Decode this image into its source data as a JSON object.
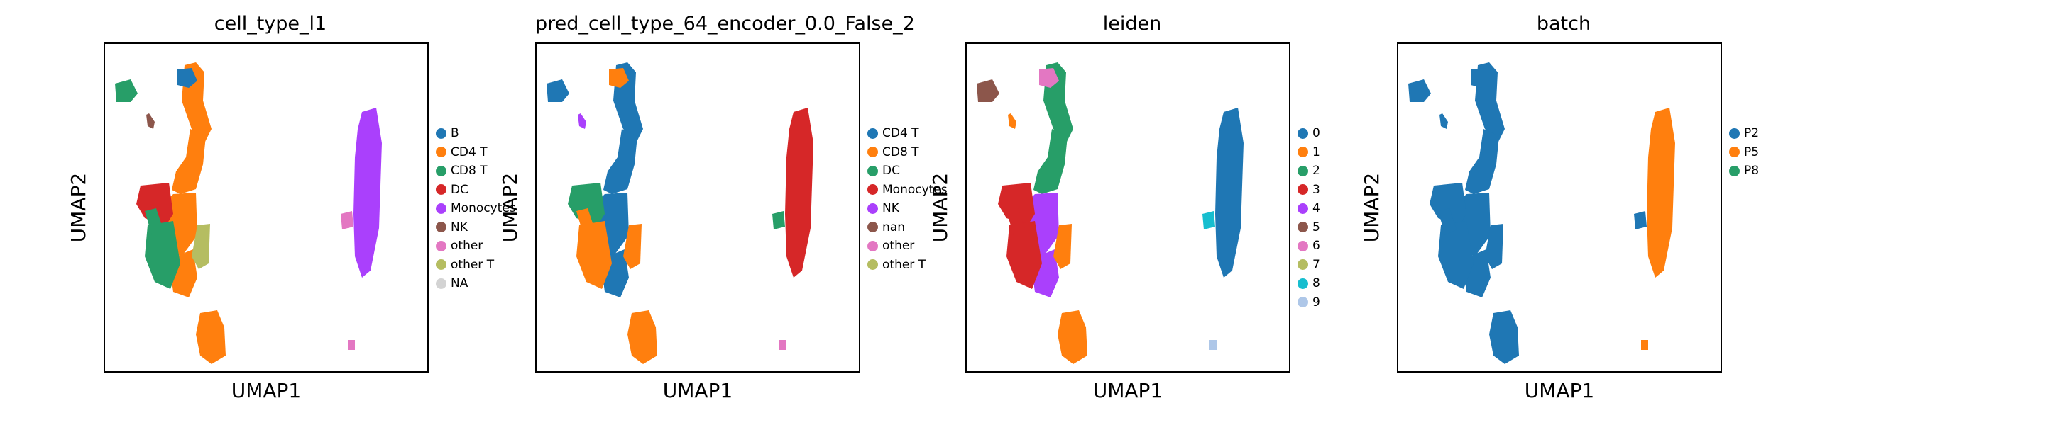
{
  "chart_data": [
    {
      "type": "scatter",
      "title": "cell_type_l1",
      "xlabel": "UMAP1",
      "ylabel": "UMAP2",
      "grid": false,
      "legend_position": "right",
      "legend": [
        {
          "label": "B",
          "color": "#1f77b4"
        },
        {
          "label": "CD4 T",
          "color": "#ff7f0e"
        },
        {
          "label": "CD8 T",
          "color": "#279e68"
        },
        {
          "label": "DC",
          "color": "#d62728"
        },
        {
          "label": "Monocytes",
          "color": "#aa40fc"
        },
        {
          "label": "NK",
          "color": "#8c564b"
        },
        {
          "label": "other",
          "color": "#e377c2"
        },
        {
          "label": "other T",
          "color": "#b5bd61"
        },
        {
          "label": "NA",
          "color": "#d3d3d3"
        }
      ],
      "clusters": [
        "CD4 T",
        "CD4 T",
        "CD4 T",
        "CD4 T",
        "B",
        "CD8 T",
        "DC",
        "Monocytes",
        "other",
        "CD8 T",
        "CD8 T",
        "other T",
        "CD4 T",
        "NK",
        "other"
      ]
    },
    {
      "type": "scatter",
      "title": "pred_cell_type_64_encoder_0.0_False_2",
      "xlabel": "UMAP1",
      "ylabel": "UMAP2",
      "grid": false,
      "legend_position": "right",
      "legend": [
        {
          "label": "CD4 T",
          "color": "#1f77b4"
        },
        {
          "label": "CD8 T",
          "color": "#ff7f0e"
        },
        {
          "label": "DC",
          "color": "#279e68"
        },
        {
          "label": "Monocytes",
          "color": "#d62728"
        },
        {
          "label": "NK",
          "color": "#aa40fc"
        },
        {
          "label": "nan",
          "color": "#8c564b"
        },
        {
          "label": "other",
          "color": "#e377c2"
        },
        {
          "label": "other T",
          "color": "#b5bd61"
        }
      ],
      "clusters": [
        "CD4 T",
        "CD4 T",
        "CD4 T",
        "CD4 T",
        "CD8 T",
        "CD4 T",
        "DC",
        "Monocytes",
        "DC",
        "CD8 T",
        "CD8 T",
        "CD8 T",
        "CD8 T",
        "NK",
        "other"
      ]
    },
    {
      "type": "scatter",
      "title": "leiden",
      "xlabel": "UMAP1",
      "ylabel": "UMAP2",
      "grid": false,
      "legend_position": "right",
      "legend": [
        {
          "label": "0",
          "color": "#1f77b4"
        },
        {
          "label": "1",
          "color": "#ff7f0e"
        },
        {
          "label": "2",
          "color": "#279e68"
        },
        {
          "label": "3",
          "color": "#d62728"
        },
        {
          "label": "4",
          "color": "#aa40fc"
        },
        {
          "label": "5",
          "color": "#8c564b"
        },
        {
          "label": "6",
          "color": "#e377c2"
        },
        {
          "label": "7",
          "color": "#b5bd61"
        },
        {
          "label": "8",
          "color": "#17becf"
        },
        {
          "label": "9",
          "color": "#aec7e8"
        }
      ],
      "clusters": [
        "2",
        "2",
        "4",
        "4",
        "6",
        "5",
        "3",
        "0",
        "8",
        "3",
        "3",
        "1",
        "1",
        "1",
        "9"
      ]
    },
    {
      "type": "scatter",
      "title": "batch",
      "xlabel": "UMAP1",
      "ylabel": "UMAP2",
      "grid": false,
      "legend_position": "right",
      "legend": [
        {
          "label": "P2",
          "color": "#1f77b4"
        },
        {
          "label": "P5",
          "color": "#ff7f0e"
        },
        {
          "label": "P8",
          "color": "#279e68"
        }
      ],
      "clusters": [
        "P2",
        "P2",
        "P2",
        "P2",
        "P2",
        "P2",
        "P2",
        "P5",
        "P2",
        "P2",
        "P2",
        "P2",
        "P2",
        "P2",
        "P5"
      ]
    }
  ]
}
